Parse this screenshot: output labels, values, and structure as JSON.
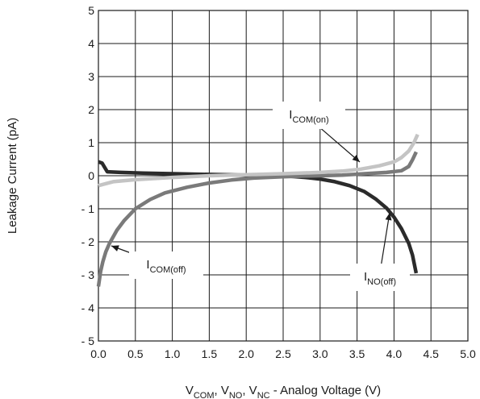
{
  "chart_data": {
    "type": "line",
    "title": "",
    "xlabel": {
      "parts": [
        {
          "text": "V",
          "sub": "COM"
        },
        {
          "text": ", V",
          "sub": "NO"
        },
        {
          "text": ", V",
          "sub": "NC"
        },
        {
          "text": " - Analog Voltage (V)",
          "sub": ""
        }
      ]
    },
    "ylabel": "Leakage Current  (pA)",
    "xlim": [
      0,
      5
    ],
    "ylim": [
      -5,
      5
    ],
    "xticks": [
      0,
      0.5,
      1,
      1.5,
      2,
      2.5,
      3,
      3.5,
      4,
      4.5,
      5
    ],
    "xtick_labels": [
      "0.0",
      "0.5",
      "1.0",
      "1.5",
      "2.0",
      "2.5",
      "3.0",
      "3.5",
      "4.0",
      "4.5",
      "5.0"
    ],
    "yticks": [
      5,
      4,
      3,
      2,
      1,
      0,
      -1,
      -2,
      -3,
      -4,
      -5
    ],
    "ytick_labels": [
      "5",
      "4",
      "3",
      "2",
      "1",
      "0",
      "- 1",
      "- 2",
      "- 3",
      "- 4",
      "- 5"
    ],
    "grid": true,
    "series": [
      {
        "key": "ino_off",
        "color": "#2b2b2b",
        "points": [
          [
            0,
            0.42
          ],
          [
            0.05,
            0.38
          ],
          [
            0.12,
            0.12
          ],
          [
            0.3,
            0.1
          ],
          [
            0.6,
            0.08
          ],
          [
            1.0,
            0.06
          ],
          [
            1.5,
            0.04
          ],
          [
            2.0,
            0.02
          ],
          [
            2.5,
            0.0
          ],
          [
            2.8,
            -0.05
          ],
          [
            3.0,
            -0.1
          ],
          [
            3.2,
            -0.18
          ],
          [
            3.4,
            -0.3
          ],
          [
            3.6,
            -0.48
          ],
          [
            3.75,
            -0.7
          ],
          [
            3.9,
            -0.98
          ],
          [
            4.0,
            -1.25
          ],
          [
            4.1,
            -1.6
          ],
          [
            4.2,
            -2.05
          ],
          [
            4.25,
            -2.4
          ],
          [
            4.3,
            -2.95
          ]
        ]
      },
      {
        "key": "icom_off",
        "color": "#7a7a7a",
        "points": [
          [
            0.0,
            -3.35
          ],
          [
            0.03,
            -2.9
          ],
          [
            0.06,
            -2.6
          ],
          [
            0.1,
            -2.3
          ],
          [
            0.15,
            -2.05
          ],
          [
            0.25,
            -1.65
          ],
          [
            0.35,
            -1.35
          ],
          [
            0.5,
            -1.0
          ],
          [
            0.7,
            -0.72
          ],
          [
            0.9,
            -0.52
          ],
          [
            1.2,
            -0.35
          ],
          [
            1.5,
            -0.22
          ],
          [
            1.8,
            -0.13
          ],
          [
            2.1,
            -0.07
          ],
          [
            2.5,
            -0.03
          ],
          [
            2.8,
            -0.01
          ],
          [
            3.0,
            0.0
          ],
          [
            3.3,
            0.02
          ],
          [
            3.6,
            0.06
          ],
          [
            3.9,
            0.1
          ],
          [
            4.1,
            0.15
          ],
          [
            4.2,
            0.28
          ],
          [
            4.25,
            0.48
          ],
          [
            4.3,
            0.72
          ]
        ]
      },
      {
        "key": "icom_on",
        "color": "#c4c4c4",
        "points": [
          [
            0.0,
            -0.3
          ],
          [
            0.2,
            -0.18
          ],
          [
            0.5,
            -0.12
          ],
          [
            1.0,
            -0.05
          ],
          [
            1.5,
            0.0
          ],
          [
            2.0,
            0.03
          ],
          [
            2.5,
            0.06
          ],
          [
            3.0,
            0.1
          ],
          [
            3.3,
            0.14
          ],
          [
            3.55,
            0.2
          ],
          [
            3.8,
            0.3
          ],
          [
            4.0,
            0.42
          ],
          [
            4.1,
            0.55
          ],
          [
            4.2,
            0.75
          ],
          [
            4.27,
            1.0
          ],
          [
            4.32,
            1.25
          ]
        ]
      }
    ],
    "annotations": [
      {
        "key": "ann_icom_on",
        "text": "I",
        "sub": "COM(on)"
      },
      {
        "key": "ann_icom_off",
        "text": "I",
        "sub": "COM(off)"
      },
      {
        "key": "ann_ino_off",
        "text": "I",
        "sub": "NO(off)"
      }
    ]
  }
}
